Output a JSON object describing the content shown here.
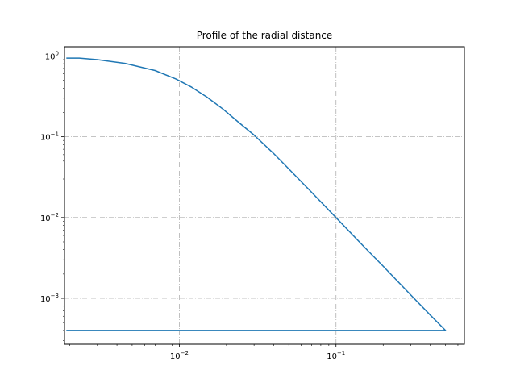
{
  "chart_data": {
    "type": "line",
    "title": "Profile of the radial distance",
    "xlabel": "",
    "ylabel": "",
    "xscale": "log",
    "yscale": "log",
    "xlim": [
      0.00185,
      0.66
    ],
    "ylim": [
      0.00027,
      1.3
    ],
    "grid": true,
    "x_ticks": [
      {
        "value": 0.01,
        "base": "10",
        "exp": "−2"
      },
      {
        "value": 0.1,
        "base": "10",
        "exp": "−1"
      }
    ],
    "y_ticks": [
      {
        "value": 0.001,
        "base": "10",
        "exp": "−3"
      },
      {
        "value": 0.01,
        "base": "10",
        "exp": "−2"
      },
      {
        "value": 0.1,
        "base": "10",
        "exp": "−1"
      },
      {
        "value": 1,
        "base": "10",
        "exp": "0"
      }
    ],
    "series": [
      {
        "color": "#1f77b4",
        "x": [
          0.0019,
          0.0023,
          0.003,
          0.0045,
          0.007,
          0.0095,
          0.012,
          0.015,
          0.019,
          0.024,
          0.03,
          0.04,
          0.05,
          0.07,
          0.1,
          0.15,
          0.2,
          0.3,
          0.4,
          0.5,
          0.0019
        ],
        "y": [
          0.94,
          0.94,
          0.9,
          0.81,
          0.66,
          0.52,
          0.41,
          0.31,
          0.22,
          0.15,
          0.105,
          0.062,
          0.04,
          0.0205,
          0.01,
          0.0044,
          0.0025,
          0.0011,
          0.00062,
          0.0004,
          0.0004
        ]
      }
    ]
  }
}
